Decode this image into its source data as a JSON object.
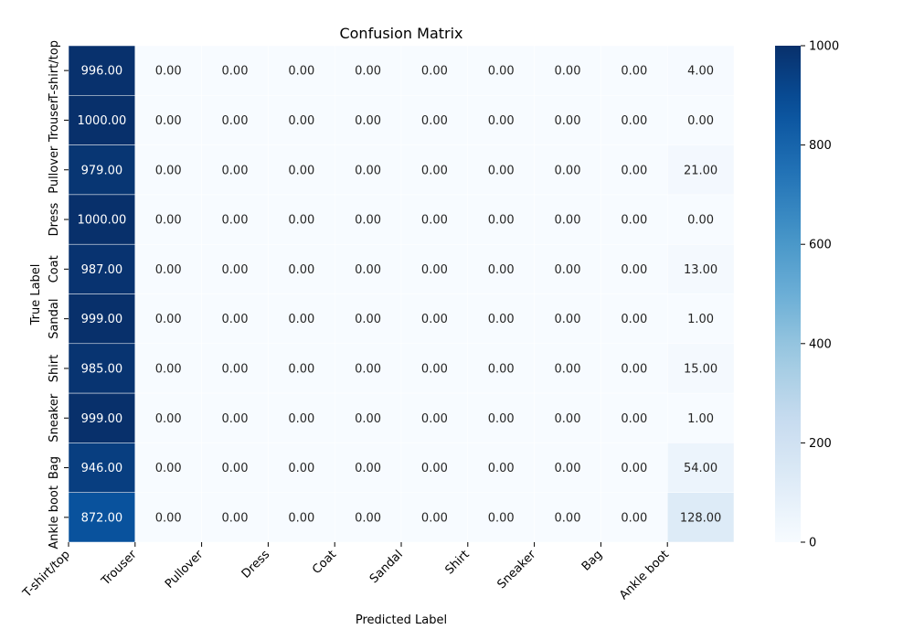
{
  "chart_data": {
    "type": "heatmap",
    "title": "Confusion Matrix",
    "xlabel": "Predicted Label",
    "ylabel": "True Label",
    "x_labels": [
      "T-shirt/top",
      "Trouser",
      "Pullover",
      "Dress",
      "Coat",
      "Sandal",
      "Shirt",
      "Sneaker",
      "Bag",
      "Ankle boot"
    ],
    "y_labels": [
      "T-shirt/top",
      "Trouser",
      "Pullover",
      "Dress",
      "Coat",
      "Sandal",
      "Shirt",
      "Sneaker",
      "Bag",
      "Ankle boot"
    ],
    "values": [
      [
        996,
        0,
        0,
        0,
        0,
        0,
        0,
        0,
        0,
        4
      ],
      [
        1000,
        0,
        0,
        0,
        0,
        0,
        0,
        0,
        0,
        0
      ],
      [
        979,
        0,
        0,
        0,
        0,
        0,
        0,
        0,
        0,
        21
      ],
      [
        1000,
        0,
        0,
        0,
        0,
        0,
        0,
        0,
        0,
        0
      ],
      [
        987,
        0,
        0,
        0,
        0,
        0,
        0,
        0,
        0,
        13
      ],
      [
        999,
        0,
        0,
        0,
        0,
        0,
        0,
        0,
        0,
        1
      ],
      [
        985,
        0,
        0,
        0,
        0,
        0,
        0,
        0,
        0,
        15
      ],
      [
        999,
        0,
        0,
        0,
        0,
        0,
        0,
        0,
        0,
        1
      ],
      [
        946,
        0,
        0,
        0,
        0,
        0,
        0,
        0,
        0,
        54
      ],
      [
        872,
        0,
        0,
        0,
        0,
        0,
        0,
        0,
        0,
        128
      ]
    ],
    "value_format": "0.00",
    "colormap": "Blues",
    "color_range": [
      0,
      1000
    ],
    "colorbar_ticks": [
      0,
      200,
      400,
      600,
      800,
      1000
    ],
    "colors": {
      "low": "#f7fbff",
      "high": "#08306b",
      "text_dark": "#262626",
      "text_light": "#ffffff"
    }
  }
}
